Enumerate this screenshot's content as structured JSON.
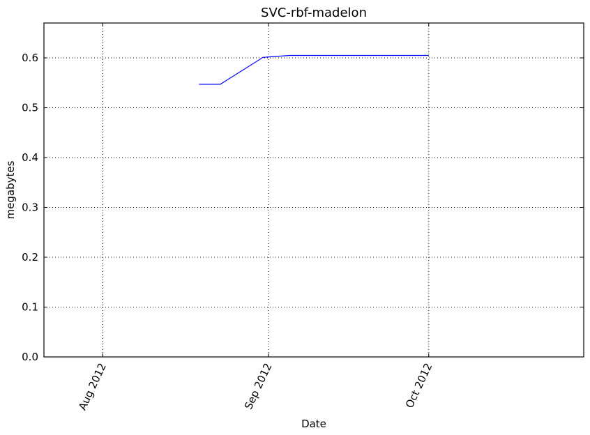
{
  "chart_data": {
    "type": "line",
    "title": "SVC-rbf-madelon",
    "xlabel": "Date",
    "ylabel": "megabytes",
    "xlim": [
      "2012-07-21",
      "2012-10-30"
    ],
    "ylim": [
      0,
      0.67
    ],
    "grid": true,
    "x_ticks": [
      {
        "date": "2012-08-01",
        "label": "Aug 2012"
      },
      {
        "date": "2012-09-01",
        "label": "Sep 2012"
      },
      {
        "date": "2012-10-01",
        "label": "Oct 2012"
      }
    ],
    "y_ticks": [
      {
        "value": 0.0,
        "label": "0.0"
      },
      {
        "value": 0.1,
        "label": "0.1"
      },
      {
        "value": 0.2,
        "label": "0.2"
      },
      {
        "value": 0.3,
        "label": "0.3"
      },
      {
        "value": 0.4,
        "label": "0.4"
      },
      {
        "value": 0.5,
        "label": "0.5"
      },
      {
        "value": 0.6,
        "label": "0.6"
      }
    ],
    "series": [
      {
        "color": "#0000ff",
        "x": [
          "2012-08-19",
          "2012-08-23",
          "2012-08-31",
          "2012-09-05",
          "2012-10-01"
        ],
        "y": [
          0.547,
          0.547,
          0.601,
          0.605,
          0.605
        ]
      }
    ]
  }
}
